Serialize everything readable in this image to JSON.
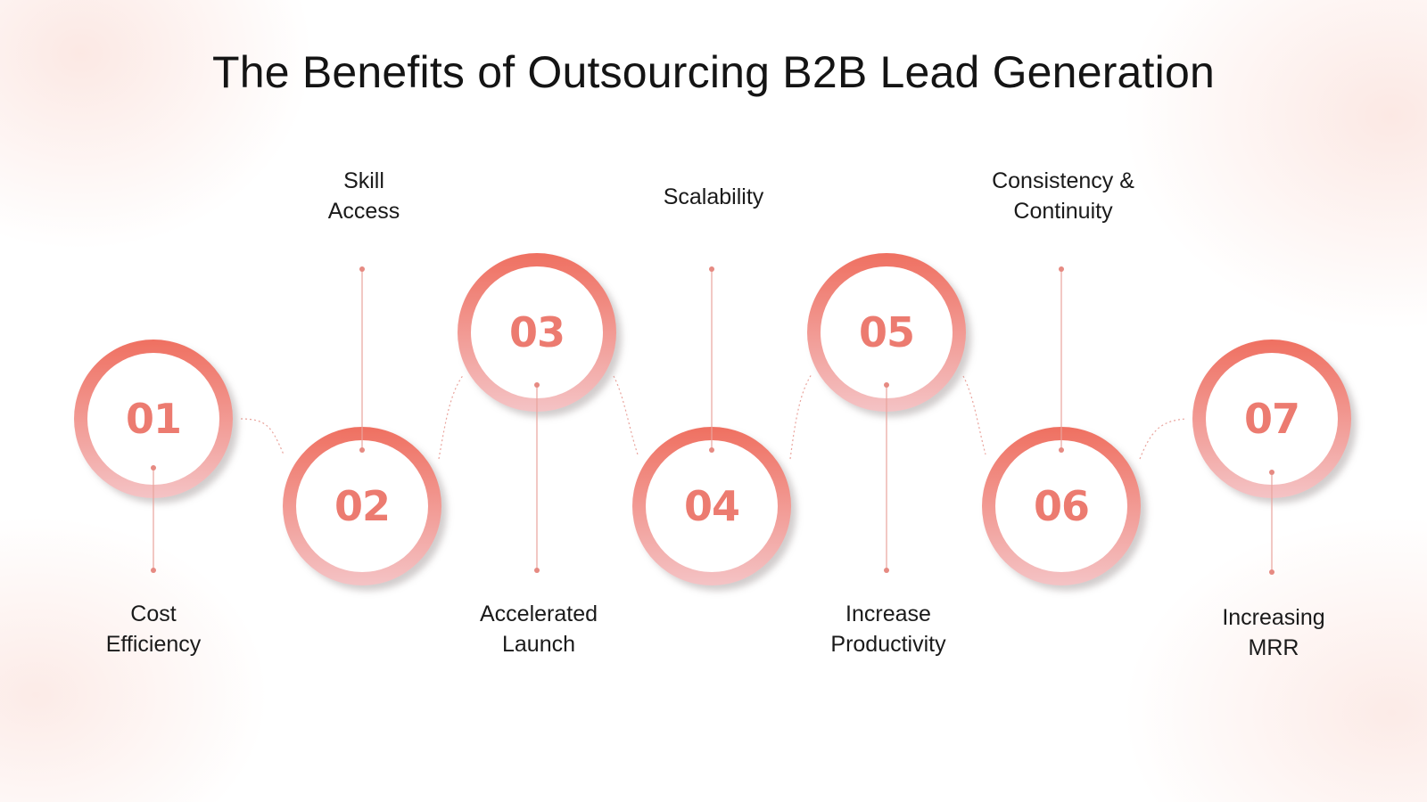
{
  "title": "The Benefits of Outsourcing B2B Lead Generation",
  "colors": {
    "ring": "#ef7567",
    "ring_fade": "#f4c1c3",
    "number": "#ec7b70",
    "connector": "#e9a39c",
    "text": "#141414"
  },
  "steps": [
    {
      "number": "01",
      "label": "Cost\nEfficiency"
    },
    {
      "number": "02",
      "label": "Skill\nAccess"
    },
    {
      "number": "03",
      "label": "Accelerated\nLaunch"
    },
    {
      "number": "04",
      "label": "Scalability"
    },
    {
      "number": "05",
      "label": "Increase\nProductivity"
    },
    {
      "number": "06",
      "label": "Consistency &\nContinuity"
    },
    {
      "number": "07",
      "label": "Increasing\nMRR"
    }
  ]
}
